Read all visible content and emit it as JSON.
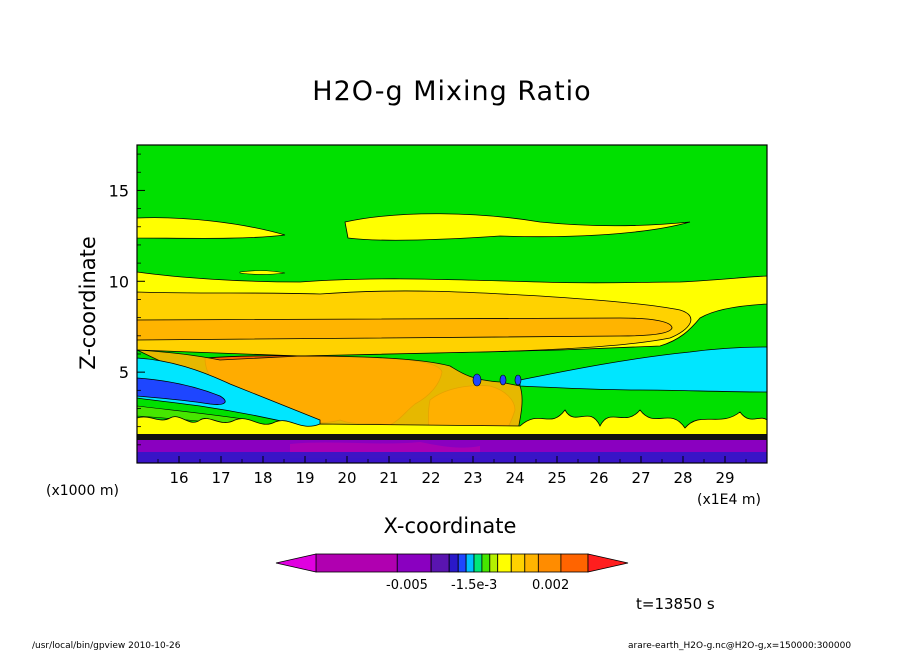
{
  "chart_data": {
    "type": "heatmap",
    "title": "H2O-g Mixing Ratio",
    "xlabel": "X-coordinate",
    "ylabel": "Z-coordinate",
    "x_unit_left": "(x1000 m)",
    "x_unit_right": "(x1E4 m)",
    "x_ticks": [
      16,
      17,
      18,
      19,
      20,
      21,
      22,
      23,
      24,
      25,
      26,
      27,
      28,
      29
    ],
    "x_range": [
      15.0,
      30.0
    ],
    "y_ticks": [
      5,
      10,
      15
    ],
    "y_range": [
      0,
      17.5
    ],
    "colorbar_labels": [
      "-0.005",
      "-1.5e-3",
      "0.002"
    ],
    "colorbar_colors": [
      "#b000b0",
      "#8a00c0",
      "#5a14b0",
      "#2a18c8",
      "#1e46ff",
      "#00bfff",
      "#00e878",
      "#46e600",
      "#b4f000",
      "#ffff00",
      "#ffd200",
      "#ffb400",
      "#ff8c00",
      "#ff6400",
      "#ff1e1e"
    ],
    "annotation": "t=13850 s",
    "footer_left": "/usr/local/bin/gpview  2010-10-26",
    "footer_right": "arare-earth_H2O-g.nc@H2O-g,x=150000:300000"
  }
}
